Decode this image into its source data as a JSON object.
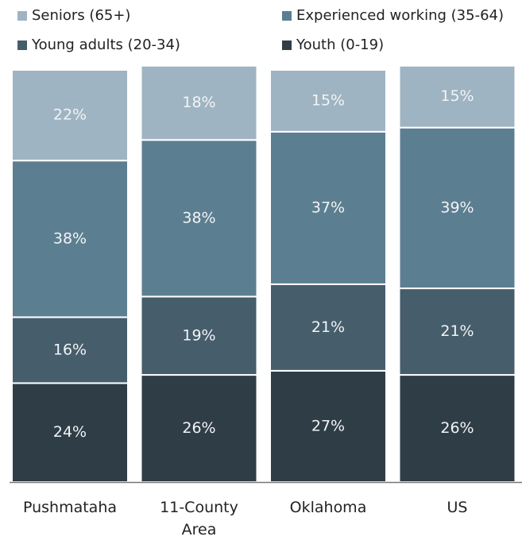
{
  "chart_data": {
    "type": "stacked_bar",
    "categories": [
      "Pushmataha",
      "11-County Area",
      "Oklahoma",
      "US"
    ],
    "ylim": [
      0,
      100
    ],
    "series": [
      {
        "name": "Youth (0-19)",
        "color": "#2f3d47",
        "values": [
          24,
          26,
          27,
          26
        ],
        "value_labels": [
          "24%",
          "26%",
          "27%",
          "26%"
        ]
      },
      {
        "name": "Young adults (20-34)",
        "color": "#465d6b",
        "values": [
          16,
          19,
          21,
          21
        ],
        "value_labels": [
          "16%",
          "19%",
          "21%",
          "21%"
        ]
      },
      {
        "name": "Experienced working (35-64)",
        "color": "#5c7e91",
        "values": [
          38,
          38,
          37,
          39
        ],
        "value_labels": [
          "38%",
          "38%",
          "37%",
          "39%"
        ]
      },
      {
        "name": "Seniors (65+)",
        "color": "#9fb4c2",
        "values": [
          22,
          18,
          15,
          15
        ],
        "value_labels": [
          "22%",
          "18%",
          "15%",
          "15%"
        ]
      }
    ]
  }
}
